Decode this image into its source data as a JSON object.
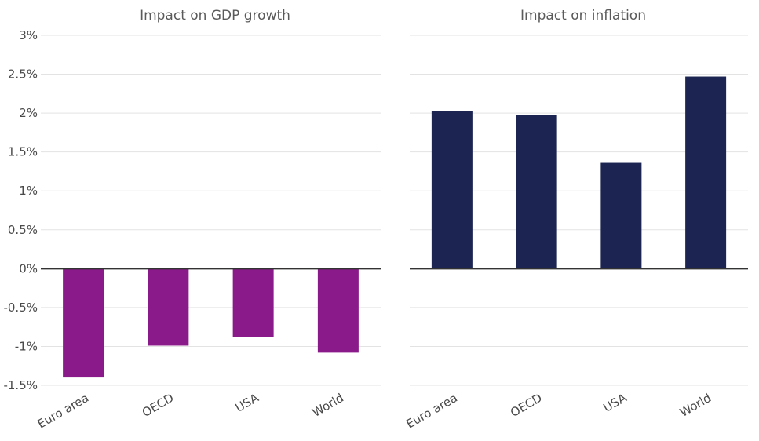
{
  "chart_data": [
    {
      "type": "bar",
      "title": "Impact on GDP growth",
      "categories": [
        "Euro area",
        "OECD",
        "USA",
        "World"
      ],
      "values": [
        -1.4,
        -0.99,
        -0.88,
        -1.08
      ],
      "ylim": [
        -1.5,
        3
      ],
      "yticks": [
        3,
        2.5,
        2,
        1.5,
        1,
        0.5,
        0,
        -0.5,
        -1,
        -1.5
      ],
      "ytick_labels": [
        "3%",
        "2.5%",
        "2%",
        "1.5%",
        "1%",
        "0.5%",
        "0%",
        "-0.5%",
        "-1%",
        "-1.5%"
      ],
      "color": "#8a1a8a"
    },
    {
      "type": "bar",
      "title": "Impact on inflation",
      "categories": [
        "Euro area",
        "OECD",
        "USA",
        "World"
      ],
      "values": [
        2.03,
        1.98,
        1.36,
        2.47
      ],
      "ylim": [
        -1.5,
        3
      ],
      "color": "#1c2552"
    }
  ]
}
